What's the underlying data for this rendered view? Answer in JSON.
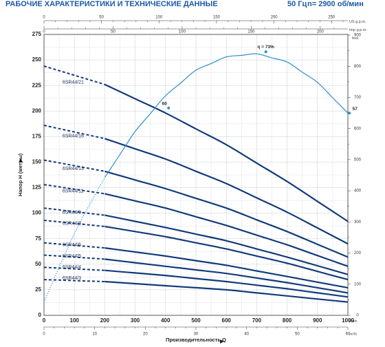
{
  "header": {
    "title": "РАБОЧИЕ ХАРАКТЕРИСТИКИ И ТЕХНИЧЕСКИЕ ДАННЫЕ",
    "freq": "50 Гц",
    "speed": "n= 2900 об/мин"
  },
  "colors": {
    "curve": "#123a7a",
    "eff": "#2a8fd0",
    "grid": "#8a93a8",
    "title": "#1a5aa6"
  },
  "chart_data": {
    "type": "line",
    "ylabel": "Напор H (метры)",
    "xlabel": "Производительность Q",
    "ylim": [
      0,
      275
    ],
    "xlim": [
      0,
      1000
    ],
    "x_unit": "l/min",
    "x_ticks": [
      0,
      100,
      200,
      300,
      400,
      500,
      600,
      700,
      800,
      900,
      1000
    ],
    "y_ticks": [
      0,
      25,
      50,
      75,
      100,
      125,
      150,
      175,
      200,
      225,
      250,
      275
    ],
    "secondary_axes": {
      "us_gpm": {
        "label": "US g.p.m.",
        "ticks": [
          0,
          50,
          100,
          150,
          200,
          250
        ]
      },
      "imp_gpm": {
        "label": "Imp g.p.m.",
        "ticks": [
          0,
          50,
          100,
          150,
          200
        ]
      },
      "m3h": {
        "label": "m³/h",
        "ticks": [
          0,
          10,
          20,
          30,
          40,
          50,
          60
        ]
      },
      "feet": {
        "label": "feet",
        "ticks": [
          0,
          100,
          200,
          300,
          400,
          500,
          600,
          700,
          800,
          900
        ]
      }
    },
    "series": [
      {
        "name": "6SR44/21",
        "x": [
          0,
          200,
          400,
          600,
          800,
          1000
        ],
        "y": [
          244,
          226,
          198,
          167,
          131,
          92
        ],
        "label_x": 210
      },
      {
        "name": "6SR44/16",
        "x": [
          0,
          200,
          400,
          600,
          800,
          1000
        ],
        "y": [
          186,
          173,
          153,
          129,
          101,
          70
        ],
        "label_x": 210
      },
      {
        "name": "6SR44/13",
        "x": [
          0,
          200,
          400,
          600,
          800,
          1000
        ],
        "y": [
          152,
          141,
          124,
          105,
          82,
          57
        ],
        "label_x": 210
      },
      {
        "name": "6SR44/11",
        "x": [
          0,
          200,
          400,
          600,
          800,
          1000
        ],
        "y": [
          128,
          119,
          105,
          88,
          69,
          48
        ],
        "label_x": 210
      },
      {
        "name": "6SR44/9",
        "x": [
          0,
          200,
          400,
          600,
          800,
          1000
        ],
        "y": [
          105,
          98,
          86,
          73,
          57,
          40
        ],
        "label_x": 210
      },
      {
        "name": "6SR44/8",
        "x": [
          0,
          200,
          400,
          600,
          800,
          1000
        ],
        "y": [
          93,
          87,
          77,
          65,
          51,
          35
        ],
        "label_x": 210
      },
      {
        "name": "6SR44/6",
        "x": [
          0,
          200,
          400,
          600,
          800,
          1000
        ],
        "y": [
          71,
          66,
          58,
          49,
          38,
          27
        ],
        "label_x": 210
      },
      {
        "name": "6SR44/5",
        "x": [
          0,
          200,
          400,
          600,
          800,
          1000
        ],
        "y": [
          59,
          55,
          48,
          41,
          32,
          22
        ],
        "label_x": 210
      },
      {
        "name": "6SR44/4",
        "x": [
          0,
          200,
          400,
          600,
          800,
          1000
        ],
        "y": [
          47,
          44,
          39,
          33,
          26,
          18
        ],
        "label_x": 210
      },
      {
        "name": "6SR44/3",
        "x": [
          0,
          200,
          400,
          600,
          800,
          1000
        ],
        "y": [
          35,
          33,
          29,
          25,
          19,
          13
        ],
        "label_x": 210
      }
    ],
    "efficiency": {
      "name": "η",
      "x": [
        0,
        100,
        200,
        300,
        400,
        500,
        600,
        700,
        800,
        900,
        1000
      ],
      "y": [
        13,
        80,
        135,
        180,
        215,
        240,
        253,
        256,
        248,
        228,
        198
      ],
      "labels": [
        {
          "text": "60",
          "x": 410,
          "y": 203
        },
        {
          "text": "η = 73%",
          "x": 730,
          "y": 258
        },
        {
          "text": "57",
          "x": 1005,
          "y": 198
        }
      ]
    }
  }
}
